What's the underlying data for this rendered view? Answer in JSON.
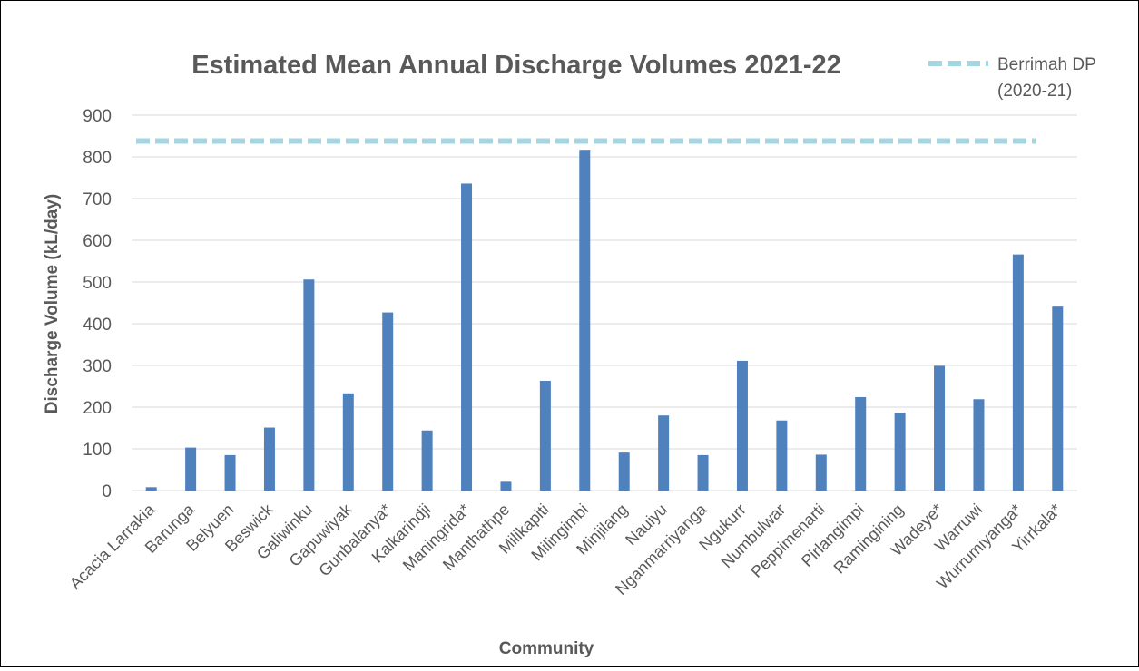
{
  "chart_data": {
    "type": "bar",
    "title": "Estimated Mean Annual Discharge Volumes 2021-22",
    "xlabel": "Community",
    "ylabel": "Discharge Volume (kL/day)",
    "ylim": [
      0,
      900
    ],
    "yticks": [
      "0",
      "100",
      "200",
      "300",
      "400",
      "500",
      "600",
      "700",
      "800",
      "900"
    ],
    "grid": true,
    "legend_position": "top-right",
    "categories": [
      "Acacia Larrakia",
      "Barunga",
      "Belyuen",
      "Beswick",
      "Galiwinku",
      "Gapuwiyak",
      "Gunbalanya*",
      "Kalkarindji",
      "Maningrida*",
      "Manthathpe",
      "Milikapiti",
      "Milingimbi",
      "Minjilang",
      "Nauiyu",
      "Nganmarriyanga",
      "Ngukurr",
      "Numbulwar",
      "Peppimenarti",
      "Pirlangimpi",
      "Ramingining",
      "Wadeye*",
      "Warruwi",
      "Wurrumiyanga*",
      "Yirrkala*"
    ],
    "values": [
      8,
      103,
      85,
      151,
      506,
      233,
      427,
      144,
      736,
      21,
      263,
      817,
      91,
      180,
      85,
      311,
      168,
      86,
      224,
      187,
      299,
      219,
      566,
      441
    ],
    "reference_line": {
      "name_lines": [
        "Berrimah DP",
        "(2020-21)"
      ],
      "value": 838,
      "style": "dashed"
    },
    "colors": {
      "bar": "#4f81bd",
      "reference": "#a5d7e2",
      "grid": "#d9d9d9",
      "text": "#595959"
    }
  }
}
